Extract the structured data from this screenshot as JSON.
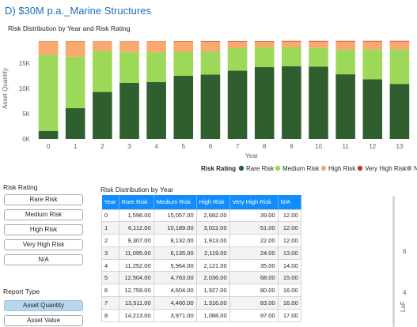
{
  "page": {
    "title": "D) $30M p.a._Marine Structures"
  },
  "chart_data": {
    "type": "bar",
    "stacked": true,
    "title": "Risk Distribution by Year and Risk Rating",
    "xlabel": "Year",
    "ylabel": "Asset Quantity",
    "ylim": [
      0,
      20000
    ],
    "yticks": [
      0,
      5000,
      10000,
      15000
    ],
    "ytick_labels": [
      "0K",
      "5K",
      "10K",
      "15K"
    ],
    "categories": [
      "0",
      "1",
      "2",
      "3",
      "4",
      "5",
      "6",
      "7",
      "8",
      "9",
      "10",
      "11",
      "12",
      "13"
    ],
    "series": [
      {
        "name": "Rare Risk",
        "color": "#2f5f2f",
        "values": [
          1596,
          6112,
          9307,
          11095,
          11252,
          12504,
          12759,
          13511,
          14213,
          14400,
          14300,
          12800,
          11800,
          10900
        ]
      },
      {
        "name": "Medium Risk",
        "color": "#9dd958",
        "values": [
          15057,
          10189,
          8132,
          6135,
          5964,
          4763,
          4604,
          4460,
          3971,
          3800,
          3700,
          4900,
          5900,
          6800
        ]
      },
      {
        "name": "High Risk",
        "color": "#f9a870",
        "values": [
          2682,
          3022,
          1913,
          2119,
          2121,
          2036,
          1927,
          1316,
          1088,
          1100,
          1300,
          1600,
          1600,
          1600
        ]
      },
      {
        "name": "Very High Risk",
        "color": "#c0392b",
        "values": [
          39,
          51,
          22,
          24,
          35,
          68,
          80,
          83,
          97,
          100,
          100,
          100,
          100,
          100
        ]
      },
      {
        "name": "N/A",
        "color": "#a0a0a0",
        "values": [
          12,
          12,
          12,
          13,
          14,
          15,
          16,
          16,
          17,
          17,
          17,
          17,
          17,
          17
        ]
      }
    ],
    "legend": {
      "title": "Risk Rating",
      "position": "bottom-right"
    },
    "grid": false
  },
  "slicer": {
    "title": "Risk Rating",
    "items": [
      "Rare Risk",
      "Medium Risk",
      "High Risk",
      "Very High Risk",
      "N/A"
    ]
  },
  "report_type": {
    "title": "Report Type",
    "items": [
      {
        "label": "Asset Quantity",
        "selected": true
      },
      {
        "label": "Asset Value",
        "selected": false
      }
    ]
  },
  "table": {
    "title": "Risk Distribution by Year",
    "columns": [
      "Year",
      "Rare Risk",
      "Medium Risk",
      "High Risk",
      "Very High Risk",
      "N/A"
    ],
    "rows": [
      [
        "0",
        "1,596.00",
        "15,057.00",
        "2,682.00",
        "39.00",
        "12.00"
      ],
      [
        "1",
        "6,112.00",
        "10,189.00",
        "3,022.00",
        "51.00",
        "12.00"
      ],
      [
        "2",
        "9,307.00",
        "8,132.00",
        "1,913.00",
        "22.00",
        "12.00"
      ],
      [
        "3",
        "11,095.00",
        "6,135.00",
        "2,119.00",
        "24.00",
        "13.00"
      ],
      [
        "4",
        "11,252.00",
        "5,964.00",
        "2,121.00",
        "35.00",
        "14.00"
      ],
      [
        "5",
        "12,504.00",
        "4,763.00",
        "2,036.00",
        "68.00",
        "15.00"
      ],
      [
        "6",
        "12,759.00",
        "4,604.00",
        "1,927.00",
        "80.00",
        "16.00"
      ],
      [
        "7",
        "13,511.00",
        "4,460.00",
        "1,316.00",
        "83.00",
        "16.00"
      ],
      [
        "8",
        "14,213.00",
        "3,971.00",
        "1,088.00",
        "97.00",
        "17.00"
      ]
    ]
  },
  "right_panel": {
    "ticks": [
      "6",
      "4"
    ],
    "axis_label": "LoF"
  }
}
